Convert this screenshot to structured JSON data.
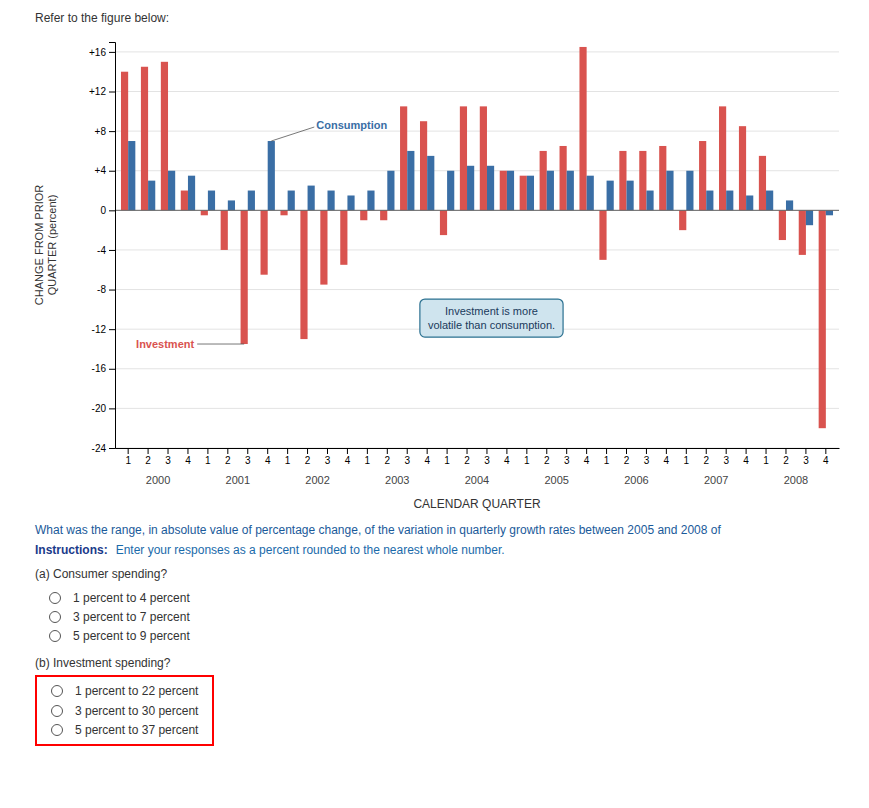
{
  "chart_data": {
    "type": "bar",
    "title": "Refer to the figure below:",
    "xlabel": "CALENDAR QUARTER",
    "ylabel": "CHANGE FROM PRIOR\nQUARTER (percent)",
    "categories": [
      "1",
      "2",
      "3",
      "4",
      "1",
      "2",
      "3",
      "4",
      "1",
      "2",
      "3",
      "4",
      "1",
      "2",
      "3",
      "4",
      "1",
      "2",
      "3",
      "4",
      "1",
      "2",
      "3",
      "4",
      "1",
      "2",
      "3",
      "4",
      "1",
      "2",
      "3",
      "4",
      "1",
      "2",
      "3",
      "4"
    ],
    "category_groups": [
      "2000",
      "2001",
      "2002",
      "2003",
      "2004",
      "2005",
      "2006",
      "2007",
      "2008"
    ],
    "series": [
      {
        "name": "Investment",
        "color": "#d9534f",
        "values": [
          14.0,
          14.5,
          15.0,
          2.0,
          -0.5,
          -4.0,
          -13.5,
          -6.5,
          -0.5,
          -13.0,
          -7.5,
          -5.5,
          -1.0,
          -1.0,
          10.5,
          9.0,
          -2.5,
          10.5,
          10.5,
          4.0,
          3.5,
          6.0,
          6.5,
          16.5,
          -5.0,
          6.0,
          6.0,
          6.5,
          -2.0,
          7.0,
          10.5,
          8.5,
          5.5,
          -3.0,
          -4.5,
          -22.0
        ]
      },
      {
        "name": "Consumption",
        "color": "#3a6ea5",
        "values": [
          7.0,
          3.0,
          4.0,
          3.5,
          2.0,
          1.0,
          2.0,
          7.0,
          2.0,
          2.5,
          2.0,
          1.5,
          2.0,
          4.0,
          6.0,
          5.5,
          4.0,
          4.5,
          4.5,
          4.0,
          3.5,
          4.0,
          4.0,
          3.5,
          3.0,
          3.0,
          2.0,
          4.0,
          4.0,
          2.0,
          2.0,
          1.5,
          2.0,
          1.0,
          -1.5,
          -0.5
        ]
      }
    ],
    "ylim": [
      -24,
      17
    ],
    "yticks": [
      -24,
      -20,
      -16,
      -12,
      -8,
      -4,
      0,
      {
        "value": 4,
        "label": "+4"
      },
      {
        "value": 8,
        "label": "+8"
      },
      {
        "value": 12,
        "label": "+12"
      },
      {
        "value": 16,
        "label": "+16"
      }
    ],
    "grid": true,
    "annotations": [
      {
        "text": "Investment is more\nvolatile than consumption."
      }
    ]
  },
  "question": {
    "text": "What was the range, in absolute value of percentage change, of the variation in quarterly growth rates between 2005 and 2008 of",
    "instructions_label": "Instructions:",
    "instructions_text": "Enter your responses as a percent rounded to the nearest whole number.",
    "parts": [
      {
        "label": "(a) Consumer spending?",
        "options": [
          "1 percent to 4 percent",
          "3 percent to 7 percent",
          "5 percent to 9 percent"
        ]
      },
      {
        "label": "(b) Investment spending?",
        "options": [
          "1 percent to 22 percent",
          "3 percent to 30 percent",
          "5 percent to 37 percent"
        ]
      }
    ]
  }
}
